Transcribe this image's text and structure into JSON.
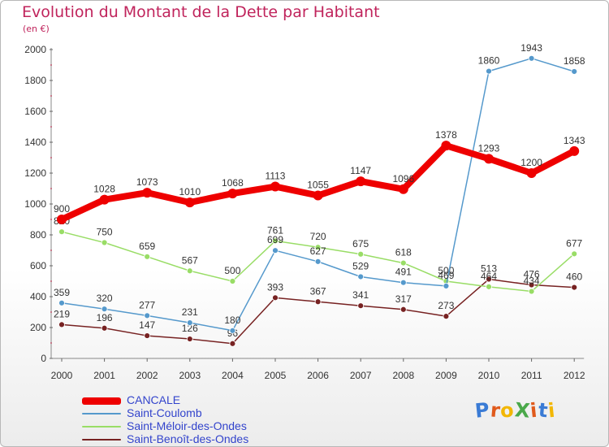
{
  "chart_data": {
    "type": "line",
    "title": "Evolution du Montant de la Dette par Habitant",
    "subtitle": "(en €)",
    "x": [
      "2000",
      "2001",
      "2002",
      "2003",
      "2004",
      "2005",
      "2006",
      "2007",
      "2008",
      "2009",
      "2010",
      "2011",
      "2012"
    ],
    "ylim": [
      0,
      2000
    ],
    "yticks": [
      0,
      200,
      400,
      600,
      800,
      1000,
      1200,
      1400,
      1600,
      1800,
      2000
    ],
    "grid": false,
    "legend_position": "bottom-left",
    "series": [
      {
        "name": "CANCALE",
        "color": "#ee0000",
        "values": [
          900,
          1028,
          1073,
          1010,
          1068,
          1113,
          1055,
          1147,
          1096,
          1378,
          1293,
          1200,
          1343
        ]
      },
      {
        "name": "Saint-Coulomb",
        "color": "#5599cc",
        "values": [
          359,
          320,
          277,
          231,
          180,
          699,
          627,
          529,
          491,
          469,
          1860,
          1943,
          1858
        ]
      },
      {
        "name": "Saint-Méloir-des-Ondes",
        "color": "#99dd66",
        "values": [
          820,
          750,
          659,
          567,
          500,
          761,
          720,
          675,
          618,
          500,
          464,
          434,
          677
        ]
      },
      {
        "name": "Saint-Benoît-des-Ondes",
        "color": "#772222",
        "values": [
          219,
          196,
          147,
          126,
          96,
          393,
          367,
          341,
          317,
          273,
          513,
          476,
          460
        ]
      }
    ]
  },
  "logo": {
    "text": "ProXiti",
    "colors": [
      "#3a7bd5",
      "#e05a1c",
      "#f2b705",
      "#4aa84a",
      "#e05a1c",
      "#3a7bd5",
      "#f2b705"
    ]
  }
}
